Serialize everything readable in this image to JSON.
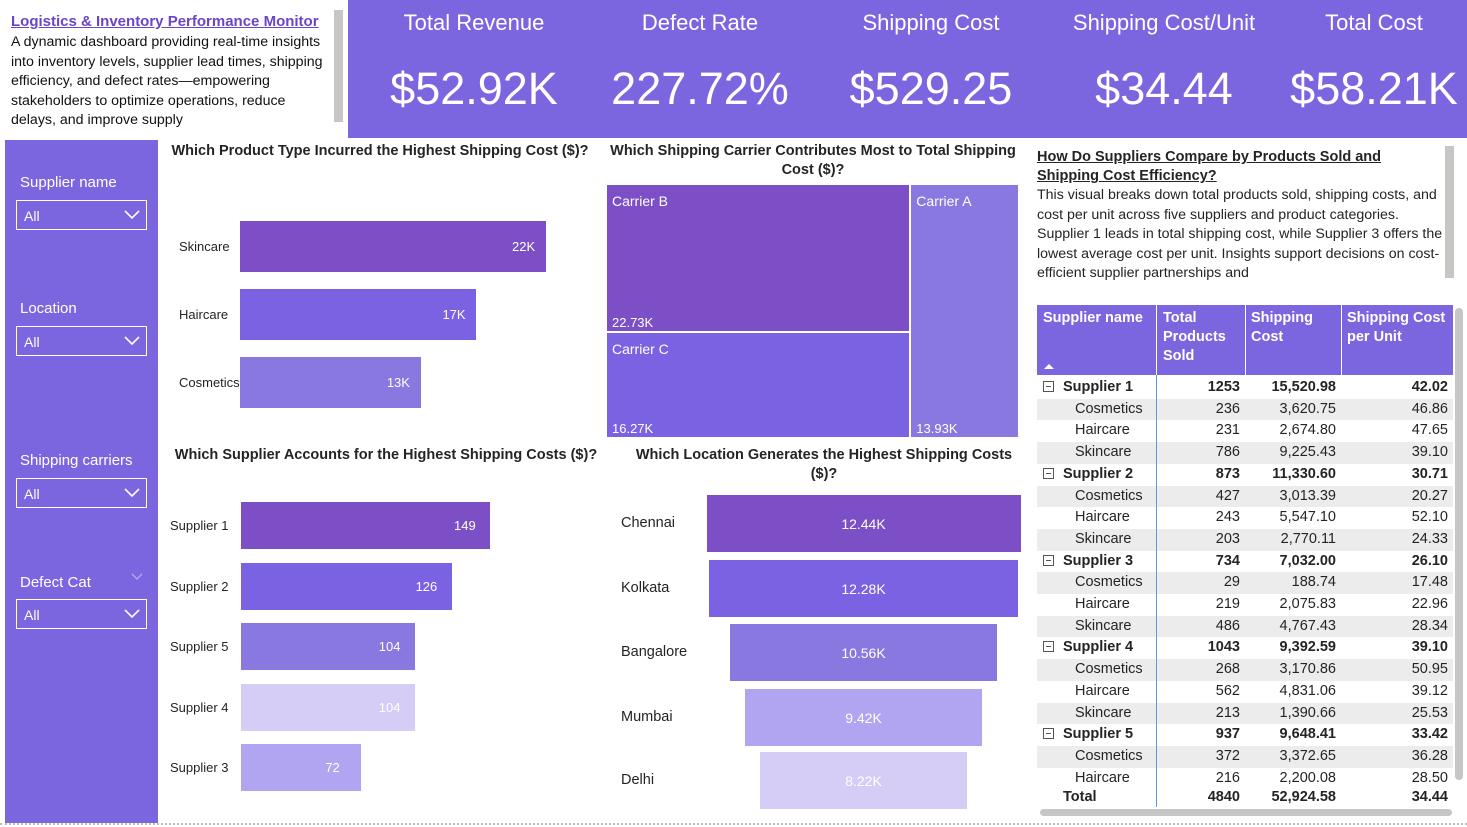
{
  "header": {
    "title": "Logistics & Inventory Performance Monitor",
    "description": "A dynamic dashboard providing real-time insights into inventory levels, supplier lead times, shipping efficiency, and defect rates—empowering stakeholders to optimize operations, reduce delays, and improve supply"
  },
  "kpis": [
    {
      "label": "Total Revenue",
      "value": "$52.92K"
    },
    {
      "label": "Defect Rate",
      "value": "227.72%"
    },
    {
      "label": "Shipping Cost",
      "value": "$529.25"
    },
    {
      "label": "Shipping Cost/Unit",
      "value": "$34.44"
    },
    {
      "label": "Total Cost",
      "value": "$58.21K"
    }
  ],
  "slicers": [
    {
      "label": "Supplier name",
      "value": "All"
    },
    {
      "label": "Location",
      "value": "All"
    },
    {
      "label": "Shipping carriers",
      "value": "All"
    },
    {
      "label": "Defect Cat",
      "value": "All"
    }
  ],
  "colors": {
    "accent": "#7c66e0",
    "bar_dark": "#7c4fc7",
    "bar_mid": "#7b62e3",
    "bar_light": "#8978e0",
    "bar_pale": "#d5cdf6",
    "bar_soft": "#b1a5f1"
  },
  "chart_data": [
    {
      "type": "bar",
      "title": "Which Product Type Incurred the Highest Shipping Cost ($)?",
      "categories": [
        "Skincare",
        "Haircare",
        "Cosmetics"
      ],
      "values": [
        22000,
        17000,
        13000
      ],
      "labels": [
        "22K",
        "17K",
        "13K"
      ],
      "colors": [
        "#7c4fc7",
        "#7b62e3",
        "#8978e0"
      ]
    },
    {
      "type": "treemap",
      "title": "Which Shipping Carrier Contributes Most to Total Shipping Cost ($)?",
      "categories": [
        "Carrier B",
        "Carrier C",
        "Carrier A"
      ],
      "values": [
        22730,
        16270,
        13930
      ],
      "labels": [
        "22.73K",
        "16.27K",
        "13.93K"
      ],
      "colors": [
        "#7c4fc7",
        "#7b62e3",
        "#8978e0"
      ]
    },
    {
      "type": "bar",
      "title": "Which Supplier Accounts for the Highest Shipping Costs ($)?",
      "categories": [
        "Supplier 1",
        "Supplier 2",
        "Supplier 5",
        "Supplier 4",
        "Supplier 3"
      ],
      "values": [
        149,
        126,
        104,
        104,
        72
      ],
      "labels": [
        "149",
        "126",
        "104",
        "104",
        "72"
      ],
      "colors": [
        "#7c4fc7",
        "#7b62e3",
        "#8978e0",
        "#d5cdf6",
        "#b1a5f1"
      ]
    },
    {
      "type": "funnel",
      "title": "Which Location Generates the Highest Shipping Costs ($)?",
      "categories": [
        "Chennai",
        "Kolkata",
        "Bangalore",
        "Mumbai",
        "Delhi"
      ],
      "values": [
        12440,
        12280,
        10560,
        9420,
        8220
      ],
      "labels": [
        "12.44K",
        "12.28K",
        "10.56K",
        "9.42K",
        "8.22K"
      ],
      "colors": [
        "#7c4fc7",
        "#7b62e3",
        "#8978e0",
        "#b1a5f1",
        "#d5cdf6"
      ]
    }
  ],
  "supplier_section": {
    "title": "How Do Suppliers Compare by Products Sold and Shipping Cost Efficiency?",
    "description": "This visual breaks down total products sold, shipping costs, and cost per unit across five suppliers and product categories. Supplier 1 leads in total shipping cost, while Supplier 3 offers the lowest average cost per unit. Insights support decisions on cost-efficient supplier partnerships and"
  },
  "table": {
    "columns": [
      "Supplier name",
      "Total Products Sold",
      "Shipping Cost",
      "Shipping Cost per Unit"
    ],
    "rows": [
      {
        "level": 0,
        "name": "Supplier 1",
        "sold": "1253",
        "cost": "15,520.98",
        "unit": "42.02"
      },
      {
        "level": 1,
        "name": "Cosmetics",
        "sold": "236",
        "cost": "3,620.75",
        "unit": "46.86"
      },
      {
        "level": 1,
        "name": "Haircare",
        "sold": "231",
        "cost": "2,674.80",
        "unit": "47.65"
      },
      {
        "level": 1,
        "name": "Skincare",
        "sold": "786",
        "cost": "9,225.43",
        "unit": "39.10"
      },
      {
        "level": 0,
        "name": "Supplier 2",
        "sold": "873",
        "cost": "11,330.60",
        "unit": "30.71"
      },
      {
        "level": 1,
        "name": "Cosmetics",
        "sold": "427",
        "cost": "3,013.39",
        "unit": "20.27"
      },
      {
        "level": 1,
        "name": "Haircare",
        "sold": "243",
        "cost": "5,547.10",
        "unit": "52.10"
      },
      {
        "level": 1,
        "name": "Skincare",
        "sold": "203",
        "cost": "2,770.11",
        "unit": "24.33"
      },
      {
        "level": 0,
        "name": "Supplier 3",
        "sold": "734",
        "cost": "7,032.00",
        "unit": "26.10"
      },
      {
        "level": 1,
        "name": "Cosmetics",
        "sold": "29",
        "cost": "188.74",
        "unit": "17.48"
      },
      {
        "level": 1,
        "name": "Haircare",
        "sold": "219",
        "cost": "2,075.83",
        "unit": "22.96"
      },
      {
        "level": 1,
        "name": "Skincare",
        "sold": "486",
        "cost": "4,767.43",
        "unit": "28.34"
      },
      {
        "level": 0,
        "name": "Supplier 4",
        "sold": "1043",
        "cost": "9,392.59",
        "unit": "39.10"
      },
      {
        "level": 1,
        "name": "Cosmetics",
        "sold": "268",
        "cost": "3,170.86",
        "unit": "50.95"
      },
      {
        "level": 1,
        "name": "Haircare",
        "sold": "562",
        "cost": "4,831.06",
        "unit": "39.12"
      },
      {
        "level": 1,
        "name": "Skincare",
        "sold": "213",
        "cost": "1,390.66",
        "unit": "25.53"
      },
      {
        "level": 0,
        "name": "Supplier 5",
        "sold": "937",
        "cost": "9,648.41",
        "unit": "33.42"
      },
      {
        "level": 1,
        "name": "Cosmetics",
        "sold": "372",
        "cost": "3,372.65",
        "unit": "36.28"
      },
      {
        "level": 1,
        "name": "Haircare",
        "sold": "216",
        "cost": "2,200.08",
        "unit": "28.50"
      }
    ],
    "total": {
      "name": "Total",
      "sold": "4840",
      "cost": "52,924.58",
      "unit": "34.44"
    }
  }
}
